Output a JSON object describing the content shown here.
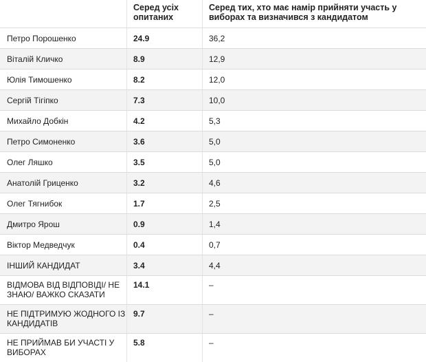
{
  "header": {
    "col_name": "",
    "col_all": "Серед усіх опитаних",
    "col_voters": "Серед тих, хто має намір прийняти участь у виборах та визначився з кандидатом"
  },
  "rows": [
    {
      "name": "Петро Порошенко",
      "all": "24.9",
      "voters": "36,2"
    },
    {
      "name": "Віталій Кличко",
      "all": "8.9",
      "voters": "12,9"
    },
    {
      "name": "Юлія Тимошенко",
      "all": "8.2",
      "voters": "12,0"
    },
    {
      "name": "Сергій Тігіпко",
      "all": "7.3",
      "voters": "10,0"
    },
    {
      "name": "Михайло Добкін",
      "all": "4.2",
      "voters": "5,3"
    },
    {
      "name": "Петро Симоненко",
      "all": "3.6",
      "voters": "5,0"
    },
    {
      "name": "Олег Ляшко",
      "all": "3.5",
      "voters": "5,0"
    },
    {
      "name": "Анатолій Гриценко",
      "all": "3.2",
      "voters": "4,6"
    },
    {
      "name": "Олег Тягнибок",
      "all": "1.7",
      "voters": "2,5"
    },
    {
      "name": "Дмитро Ярош",
      "all": "0.9",
      "voters": "1,4"
    },
    {
      "name": "Віктор Медведчук",
      "all": "0.4",
      "voters": "0,7"
    },
    {
      "name": "ІНШИЙ КАНДИДАТ",
      "all": "3.4",
      "voters": "4,4"
    },
    {
      "name": "ВІДМОВА ВІД ВІДПОВІДІ/ НЕ ЗНАЮ/ ВАЖКО СКАЗАТИ",
      "all": "14.1",
      "voters": "–"
    },
    {
      "name": "НЕ ПІДТРИМУЮ ЖОДНОГО ІЗ КАНДИДАТІВ",
      "all": "9.7",
      "voters": "–"
    },
    {
      "name": "НЕ ПРИЙМАВ БИ УЧАСТІ У ВИБОРАХ",
      "all": "5.8",
      "voters": "–"
    }
  ]
}
